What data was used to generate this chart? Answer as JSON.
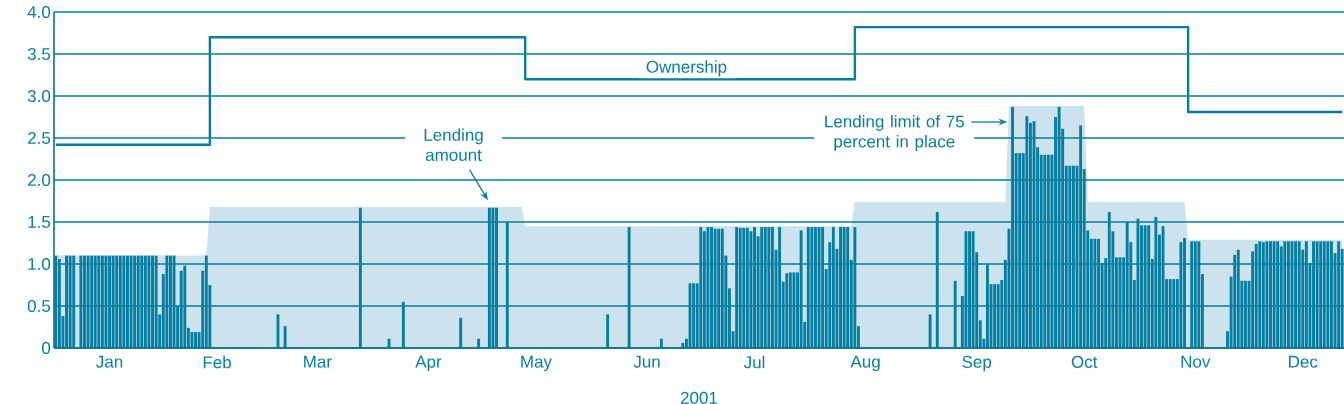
{
  "chart_data": {
    "type": "bar",
    "xlabel": "2001",
    "categories": [
      null,
      null,
      null,
      null,
      null,
      null,
      null,
      null,
      null,
      null,
      null,
      null,
      null,
      null,
      null,
      "Jan",
      null,
      null,
      null,
      null,
      null,
      null,
      null,
      null,
      null,
      null,
      null,
      null,
      null,
      null,
      null,
      null,
      null,
      null,
      null,
      null,
      null,
      null,
      null,
      null,
      null,
      null,
      null,
      null,
      null,
      "Feb",
      null,
      null,
      null,
      null,
      null,
      null,
      null,
      null,
      null,
      null,
      null,
      null,
      null,
      null,
      null,
      null,
      null,
      null,
      null,
      null,
      null,
      null,
      null,
      null,
      null,
      null,
      null,
      "Mar",
      null,
      null,
      null,
      null,
      null,
      null,
      null,
      null,
      null,
      null,
      null,
      null,
      null,
      null,
      null,
      null,
      null,
      null,
      null,
      null,
      null,
      null,
      null,
      null,
      null,
      null,
      null,
      null,
      null,
      null,
      "Apr",
      null,
      null,
      null,
      null,
      null,
      null,
      null,
      null,
      null,
      null,
      null,
      null,
      null,
      null,
      null,
      null,
      null,
      null,
      null,
      null,
      null,
      null,
      null,
      null,
      null,
      null,
      null,
      null,
      null,
      "May",
      null,
      null,
      null,
      null,
      null,
      null,
      null,
      null,
      null,
      null,
      null,
      null,
      null,
      null,
      null,
      null,
      null,
      null,
      null,
      null,
      null,
      null,
      null,
      null,
      null,
      null,
      null,
      null,
      null,
      null,
      "Jun",
      null,
      null,
      null,
      null,
      null,
      null,
      null,
      null,
      null,
      null,
      null,
      null,
      null,
      null,
      null,
      null,
      null,
      null,
      null,
      null,
      null,
      null,
      null,
      null,
      null,
      null,
      null,
      null,
      null,
      "Jul",
      null,
      null,
      null,
      null,
      null,
      null,
      null,
      null,
      null,
      null,
      null,
      null,
      null,
      null,
      null,
      null,
      null,
      null,
      null,
      null,
      null,
      null,
      null,
      null,
      null,
      null,
      null,
      null,
      null,
      null,
      "Aug",
      null,
      null,
      null,
      null,
      null,
      null,
      null,
      null,
      null,
      null,
      null,
      null,
      null,
      null,
      null,
      null,
      null,
      null,
      null,
      null,
      null,
      null,
      null,
      null,
      null,
      null,
      null,
      null,
      null,
      null,
      "Sep",
      null,
      null,
      null,
      null,
      null,
      null,
      null,
      null,
      null,
      null,
      null,
      null,
      null,
      null,
      null,
      null,
      null,
      null,
      null,
      null,
      null,
      null,
      null,
      null,
      null,
      null,
      null,
      null,
      null,
      "Oct",
      null,
      null,
      null,
      null,
      null,
      null,
      null,
      null,
      null,
      null,
      null,
      null,
      null,
      null,
      null,
      null,
      null,
      null,
      null,
      null,
      null,
      null,
      null,
      null,
      null,
      null,
      null,
      null,
      null,
      null,
      "Nov",
      null,
      null,
      null,
      null,
      null,
      null,
      null,
      null,
      null,
      null,
      null,
      null,
      null,
      null,
      null,
      null,
      null,
      null,
      null,
      null,
      null,
      null,
      null,
      null,
      null,
      null,
      null,
      null,
      null,
      "Dec",
      null,
      null,
      null,
      null,
      null,
      null,
      null,
      null,
      null,
      null,
      null
    ],
    "series": [
      {
        "type": "area",
        "color": "#cce3ed",
        "values": [
          1.1,
          1.1,
          1.1,
          1.1,
          1.1,
          1.1,
          1.1,
          1.1,
          1.1,
          1.1,
          1.1,
          1.1,
          1.1,
          1.1,
          1.1,
          1.1,
          1.1,
          1.1,
          1.1,
          1.1,
          1.1,
          1.1,
          1.1,
          1.1,
          1.1,
          1.1,
          1.1,
          1.1,
          1.1,
          1.1,
          1.1,
          1.1,
          1.1,
          1.1,
          1.1,
          1.1,
          1.1,
          1.1,
          1.1,
          1.1,
          1.1,
          1.1,
          1.1,
          1.68,
          1.68,
          1.68,
          1.68,
          1.68,
          1.68,
          1.68,
          1.68,
          1.68,
          1.68,
          1.68,
          1.68,
          1.68,
          1.68,
          1.68,
          1.68,
          1.68,
          1.68,
          1.68,
          1.68,
          1.68,
          1.68,
          1.68,
          1.68,
          1.68,
          1.68,
          1.68,
          1.68,
          1.68,
          1.68,
          1.68,
          1.68,
          1.68,
          1.68,
          1.68,
          1.68,
          1.68,
          1.68,
          1.68,
          1.68,
          1.68,
          1.68,
          1.68,
          1.68,
          1.68,
          1.68,
          1.68,
          1.68,
          1.68,
          1.68,
          1.68,
          1.68,
          1.68,
          1.68,
          1.68,
          1.68,
          1.68,
          1.68,
          1.68,
          1.68,
          1.68,
          1.68,
          1.68,
          1.68,
          1.68,
          1.68,
          1.68,
          1.68,
          1.68,
          1.68,
          1.68,
          1.68,
          1.68,
          1.68,
          1.68,
          1.68,
          1.68,
          1.68,
          1.68,
          1.68,
          1.68,
          1.68,
          1.68,
          1.68,
          1.68,
          1.68,
          1.68,
          1.68,
          1.45,
          1.45,
          1.45,
          1.45,
          1.45,
          1.45,
          1.45,
          1.45,
          1.45,
          1.45,
          1.45,
          1.45,
          1.45,
          1.45,
          1.45,
          1.45,
          1.45,
          1.45,
          1.45,
          1.45,
          1.45,
          1.45,
          1.45,
          1.45,
          1.45,
          1.45,
          1.45,
          1.45,
          1.45,
          1.45,
          1.45,
          1.45,
          1.45,
          1.45,
          1.45,
          1.45,
          1.45,
          1.45,
          1.45,
          1.45,
          1.45,
          1.45,
          1.45,
          1.45,
          1.45,
          1.45,
          1.45,
          1.45,
          1.45,
          1.45,
          1.45,
          1.45,
          1.45,
          1.45,
          1.45,
          1.45,
          1.45,
          1.45,
          1.45,
          1.45,
          1.45,
          1.45,
          1.45,
          1.45,
          1.45,
          1.45,
          1.45,
          1.45,
          1.45,
          1.45,
          1.45,
          1.45,
          1.45,
          1.45,
          1.45,
          1.45,
          1.45,
          1.45,
          1.45,
          1.45,
          1.45,
          1.45,
          1.45,
          1.45,
          1.45,
          1.45,
          1.45,
          1.45,
          1.45,
          1.45,
          1.45,
          1.45,
          1.74,
          1.74,
          1.74,
          1.74,
          1.74,
          1.74,
          1.74,
          1.74,
          1.74,
          1.74,
          1.74,
          1.74,
          1.74,
          1.74,
          1.74,
          1.74,
          1.74,
          1.74,
          1.74,
          1.74,
          1.74,
          1.74,
          1.74,
          1.74,
          1.74,
          1.74,
          1.74,
          1.74,
          1.74,
          1.74,
          1.74,
          1.74,
          1.74,
          1.74,
          1.74,
          1.74,
          1.74,
          1.74,
          1.74,
          1.74,
          1.74,
          1.74,
          1.74,
          2.88,
          2.88,
          2.88,
          2.88,
          2.88,
          2.88,
          2.88,
          2.88,
          2.88,
          2.88,
          2.88,
          2.88,
          2.88,
          2.88,
          2.88,
          2.88,
          2.88,
          2.88,
          2.88,
          2.88,
          2.88,
          2.88,
          1.74,
          1.74,
          1.74,
          1.74,
          1.74,
          1.74,
          1.74,
          1.74,
          1.74,
          1.74,
          1.74,
          1.74,
          1.74,
          1.74,
          1.74,
          1.74,
          1.74,
          1.74,
          1.74,
          1.74,
          1.74,
          1.74,
          1.74,
          1.74,
          1.74,
          1.74,
          1.74,
          1.74,
          1.29,
          1.29,
          1.29,
          1.29,
          1.29,
          1.29,
          1.29,
          1.29,
          1.29,
          1.29,
          1.29,
          1.29,
          1.29,
          1.29,
          1.29,
          1.29,
          1.29,
          1.29,
          1.29,
          1.29,
          1.29,
          1.29,
          1.29,
          1.29,
          1.29,
          1.29,
          1.29,
          1.29,
          1.29,
          1.29,
          1.29,
          1.29,
          1.29,
          1.29,
          1.29,
          1.29,
          1.29,
          1.29,
          1.29,
          1.29,
          1.29,
          1.29,
          1.29,
          1.29
        ]
      },
      {
        "name": "Lending amount",
        "color": "#047fa2",
        "values": [
          1.1,
          1.06,
          0.38,
          1.1,
          1.1,
          1.1,
          0,
          1.1,
          1.1,
          1.1,
          1.1,
          1.1,
          1.1,
          1.1,
          1.1,
          1.1,
          1.1,
          1.1,
          1.1,
          1.1,
          1.1,
          1.1,
          1.1,
          1.1,
          1.1,
          1.1,
          1.1,
          1.1,
          1.1,
          0.4,
          0.88,
          1.1,
          1.1,
          1.1,
          0.5,
          0.92,
          0.98,
          0.24,
          0.19,
          0.19,
          0.19,
          0.92,
          1.1,
          0.75,
          0,
          0,
          0,
          0,
          0,
          0,
          0,
          0,
          0,
          0,
          0,
          0,
          0,
          0,
          0,
          0,
          0,
          0,
          0.4,
          0,
          0.26,
          0,
          0,
          0,
          0,
          0,
          0,
          0,
          0,
          0,
          0,
          0,
          0,
          0,
          0,
          0,
          0,
          0,
          0,
          0,
          0,
          1.67,
          0,
          0,
          0,
          0,
          0,
          0,
          0,
          0.11,
          0,
          0,
          0,
          0.55,
          0,
          0,
          0,
          0,
          0,
          0,
          0,
          0,
          0,
          0,
          0,
          0,
          0,
          0,
          0,
          0.36,
          0,
          0,
          0,
          0,
          0.11,
          0,
          0,
          1.67,
          1.67,
          1.67,
          0,
          0,
          1.5,
          0,
          0,
          0,
          0,
          0,
          0,
          0,
          0,
          0,
          0,
          0,
          0,
          0,
          0,
          0,
          0,
          0,
          0,
          0,
          0,
          0,
          0,
          0,
          0,
          0,
          0,
          0,
          0.4,
          0,
          0,
          0,
          0,
          0,
          1.44,
          0,
          0,
          0,
          0,
          0,
          0,
          0,
          0,
          0.11,
          0,
          0,
          0,
          0,
          0,
          0.06,
          0.11,
          0.77,
          0.77,
          0.77,
          1.44,
          1.39,
          1.44,
          1.44,
          1.42,
          1.42,
          1.42,
          1.1,
          0.71,
          0.2,
          1.44,
          1.43,
          1.43,
          1.43,
          1.39,
          1.44,
          1.33,
          1.44,
          1.44,
          1.44,
          1.44,
          1.17,
          1.44,
          0.79,
          0.89,
          0.9,
          0.9,
          0.9,
          1.4,
          0.31,
          1.44,
          1.44,
          1.44,
          1.44,
          1.44,
          0.94,
          1.26,
          1.44,
          1.18,
          1.44,
          1.44,
          1.44,
          1.05,
          1.44,
          0.26,
          0,
          0,
          0,
          0,
          0,
          0,
          0,
          0,
          0,
          0,
          0,
          0,
          0,
          0,
          0,
          0,
          0,
          0,
          0,
          0.4,
          0,
          1.62,
          0,
          0,
          0,
          0,
          0.8,
          0,
          0.62,
          1.39,
          1.39,
          1.39,
          1.14,
          0.33,
          0.11,
          1.0,
          0.76,
          0.76,
          0.76,
          0.81,
          1.05,
          1.42,
          2.87,
          2.32,
          2.32,
          2.32,
          2.76,
          2.68,
          2.7,
          2.39,
          2.3,
          2.3,
          2.3,
          2.3,
          2.75,
          2.87,
          2.61,
          2.17,
          2.17,
          2.17,
          2.17,
          2.65,
          2.13,
          1.4,
          1.3,
          1.3,
          1.3,
          1.01,
          1.07,
          1.62,
          1.39,
          1.08,
          1.08,
          1.08,
          1.5,
          1.26,
          0.81,
          1.54,
          1.46,
          1.46,
          1.46,
          1.06,
          1.56,
          1.35,
          1.45,
          0.82,
          0.82,
          0.82,
          0.82,
          1.26,
          1.31,
          0,
          1.27,
          1.27,
          1.27,
          0.88,
          0,
          0,
          0,
          0,
          0,
          0,
          0.2,
          0.85,
          1.11,
          1.17,
          0.8,
          0.8,
          0.8,
          1.15,
          1.24,
          1.27,
          1.26,
          1.27,
          1.27,
          1.27,
          1.27,
          1.21,
          1.27,
          1.27,
          1.27,
          1.27,
          1.27,
          1.17,
          1.27,
          1.01,
          1.27,
          1.27,
          1.27,
          1.27,
          1.27,
          1.27,
          1.13,
          1.27,
          1.18
        ]
      },
      {
        "type": "step",
        "name": "Ownership",
        "color": "#047fa2",
        "values": [
          2.42,
          2.42,
          2.42,
          2.42,
          2.42,
          2.42,
          2.42,
          2.42,
          2.42,
          2.42,
          2.42,
          2.42,
          2.42,
          2.42,
          2.42,
          2.42,
          2.42,
          2.42,
          2.42,
          2.42,
          2.42,
          2.42,
          2.42,
          2.42,
          2.42,
          2.42,
          2.42,
          2.42,
          2.42,
          2.42,
          2.42,
          2.42,
          2.42,
          2.42,
          2.42,
          2.42,
          2.42,
          2.42,
          2.42,
          2.42,
          2.42,
          2.42,
          2.42,
          3.7,
          3.7,
          3.7,
          3.7,
          3.7,
          3.7,
          3.7,
          3.7,
          3.7,
          3.7,
          3.7,
          3.7,
          3.7,
          3.7,
          3.7,
          3.7,
          3.7,
          3.7,
          3.7,
          3.7,
          3.7,
          3.7,
          3.7,
          3.7,
          3.7,
          3.7,
          3.7,
          3.7,
          3.7,
          3.7,
          3.7,
          3.7,
          3.7,
          3.7,
          3.7,
          3.7,
          3.7,
          3.7,
          3.7,
          3.7,
          3.7,
          3.7,
          3.7,
          3.7,
          3.7,
          3.7,
          3.7,
          3.7,
          3.7,
          3.7,
          3.7,
          3.7,
          3.7,
          3.7,
          3.7,
          3.7,
          3.7,
          3.7,
          3.7,
          3.7,
          3.7,
          3.7,
          3.7,
          3.7,
          3.7,
          3.7,
          3.7,
          3.7,
          3.7,
          3.7,
          3.7,
          3.7,
          3.7,
          3.7,
          3.7,
          3.7,
          3.7,
          3.7,
          3.7,
          3.7,
          3.7,
          3.7,
          3.7,
          3.7,
          3.7,
          3.7,
          3.7,
          3.7,
          3.2,
          3.2,
          3.2,
          3.2,
          3.2,
          3.2,
          3.2,
          3.2,
          3.2,
          3.2,
          3.2,
          3.2,
          3.2,
          3.2,
          3.2,
          3.2,
          3.2,
          3.2,
          3.2,
          3.2,
          3.2,
          3.2,
          3.2,
          3.2,
          3.2,
          3.2,
          3.2,
          3.2,
          3.2,
          3.2,
          3.2,
          3.2,
          3.2,
          3.2,
          3.2,
          3.2,
          3.2,
          3.2,
          3.2,
          3.2,
          3.2,
          3.2,
          3.2,
          3.2,
          3.2,
          3.2,
          3.2,
          3.2,
          3.2,
          3.2,
          3.2,
          3.2,
          3.2,
          3.2,
          3.2,
          3.2,
          3.2,
          3.2,
          3.2,
          3.2,
          3.2,
          3.2,
          3.2,
          3.2,
          3.2,
          3.2,
          3.2,
          3.2,
          3.2,
          3.2,
          3.2,
          3.2,
          3.2,
          3.2,
          3.2,
          3.2,
          3.2,
          3.2,
          3.2,
          3.2,
          3.2,
          3.2,
          3.2,
          3.2,
          3.2,
          3.2,
          3.2,
          3.2,
          3.2,
          3.2,
          3.2,
          3.2,
          3.82,
          3.82,
          3.82,
          3.82,
          3.82,
          3.82,
          3.82,
          3.82,
          3.82,
          3.82,
          3.82,
          3.82,
          3.82,
          3.82,
          3.82,
          3.82,
          3.82,
          3.82,
          3.82,
          3.82,
          3.82,
          3.82,
          3.82,
          3.82,
          3.82,
          3.82,
          3.82,
          3.82,
          3.82,
          3.82,
          3.82,
          3.82,
          3.82,
          3.82,
          3.82,
          3.82,
          3.82,
          3.82,
          3.82,
          3.82,
          3.82,
          3.82,
          3.82,
          3.82,
          3.82,
          3.82,
          3.82,
          3.82,
          3.82,
          3.82,
          3.82,
          3.82,
          3.82,
          3.82,
          3.82,
          3.82,
          3.82,
          3.82,
          3.82,
          3.82,
          3.82,
          3.82,
          3.82,
          3.82,
          3.82,
          3.82,
          3.82,
          3.82,
          3.82,
          3.82,
          3.82,
          3.82,
          3.82,
          3.82,
          3.82,
          3.82,
          3.82,
          3.82,
          3.82,
          3.82,
          3.82,
          3.82,
          3.82,
          3.82,
          3.82,
          3.82,
          3.82,
          3.82,
          3.82,
          3.82,
          3.82,
          3.82,
          3.82,
          2.81,
          2.81,
          2.81,
          2.81,
          2.81,
          2.81,
          2.81,
          2.81,
          2.81,
          2.81,
          2.81,
          2.81,
          2.81,
          2.81,
          2.81,
          2.81,
          2.81,
          2.81,
          2.81,
          2.81,
          2.81,
          2.81,
          2.81,
          2.81,
          2.81,
          2.81,
          2.81,
          2.81,
          2.81,
          2.81,
          2.81,
          2.81,
          2.81,
          2.81,
          2.81,
          2.81,
          2.81,
          2.81,
          2.81,
          2.81,
          2.81,
          2.81,
          2.81,
          2.81
        ]
      }
    ],
    "ylim": [
      0,
      4
    ],
    "yticks": [
      0,
      0.5,
      {
        "value": 1,
        "label": "1.0"
      },
      1.5,
      {
        "value": 2,
        "label": "2.0"
      },
      2.5,
      {
        "value": 3,
        "label": "3.0"
      },
      3.5,
      {
        "value": 4,
        "label": "4.0"
      }
    ],
    "grid": "y",
    "legend": false,
    "annotations": [
      "Lending limit of 75 percent in place"
    ]
  }
}
